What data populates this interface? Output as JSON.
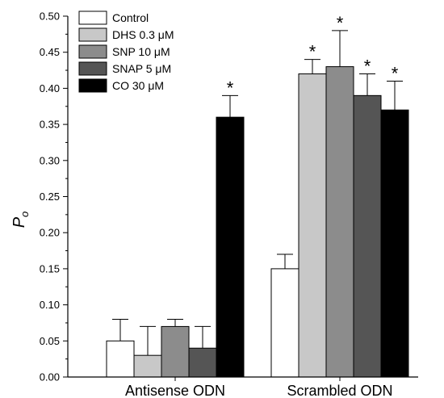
{
  "chart_data": {
    "type": "bar",
    "categories": [
      "Antisense ODN",
      "Scrambled ODN"
    ],
    "ylabel": "P",
    "ylabel_sub": "o",
    "ylim": [
      0,
      0.5
    ],
    "yticks": [
      "0.00",
      "0.05",
      "0.10",
      "0.15",
      "0.20",
      "0.25",
      "0.30",
      "0.35",
      "0.40",
      "0.45",
      "0.50"
    ],
    "legend_position": "top-left",
    "grid": false,
    "series": [
      {
        "name": "Control",
        "color": "#ffffff",
        "values": [
          0.05,
          0.15
        ],
        "errors": [
          0.03,
          0.02
        ],
        "significant": [
          false,
          false
        ]
      },
      {
        "name": "DHS 0.3 μM",
        "color": "#c8c8c8",
        "values": [
          0.03,
          0.42
        ],
        "errors": [
          0.04,
          0.02
        ],
        "significant": [
          false,
          true
        ]
      },
      {
        "name": "SNP 10 μM",
        "color": "#8c8c8c",
        "values": [
          0.07,
          0.43
        ],
        "errors": [
          0.01,
          0.05
        ],
        "significant": [
          false,
          true
        ]
      },
      {
        "name": "SNAP 5 μM",
        "color": "#555555",
        "values": [
          0.04,
          0.39
        ],
        "errors": [
          0.03,
          0.03
        ],
        "significant": [
          false,
          true
        ]
      },
      {
        "name": "CO 30 μM",
        "color": "#000000",
        "values": [
          0.36,
          0.37
        ],
        "errors": [
          0.03,
          0.04
        ],
        "significant": [
          true,
          true
        ]
      }
    ],
    "significance_marker": "*"
  }
}
